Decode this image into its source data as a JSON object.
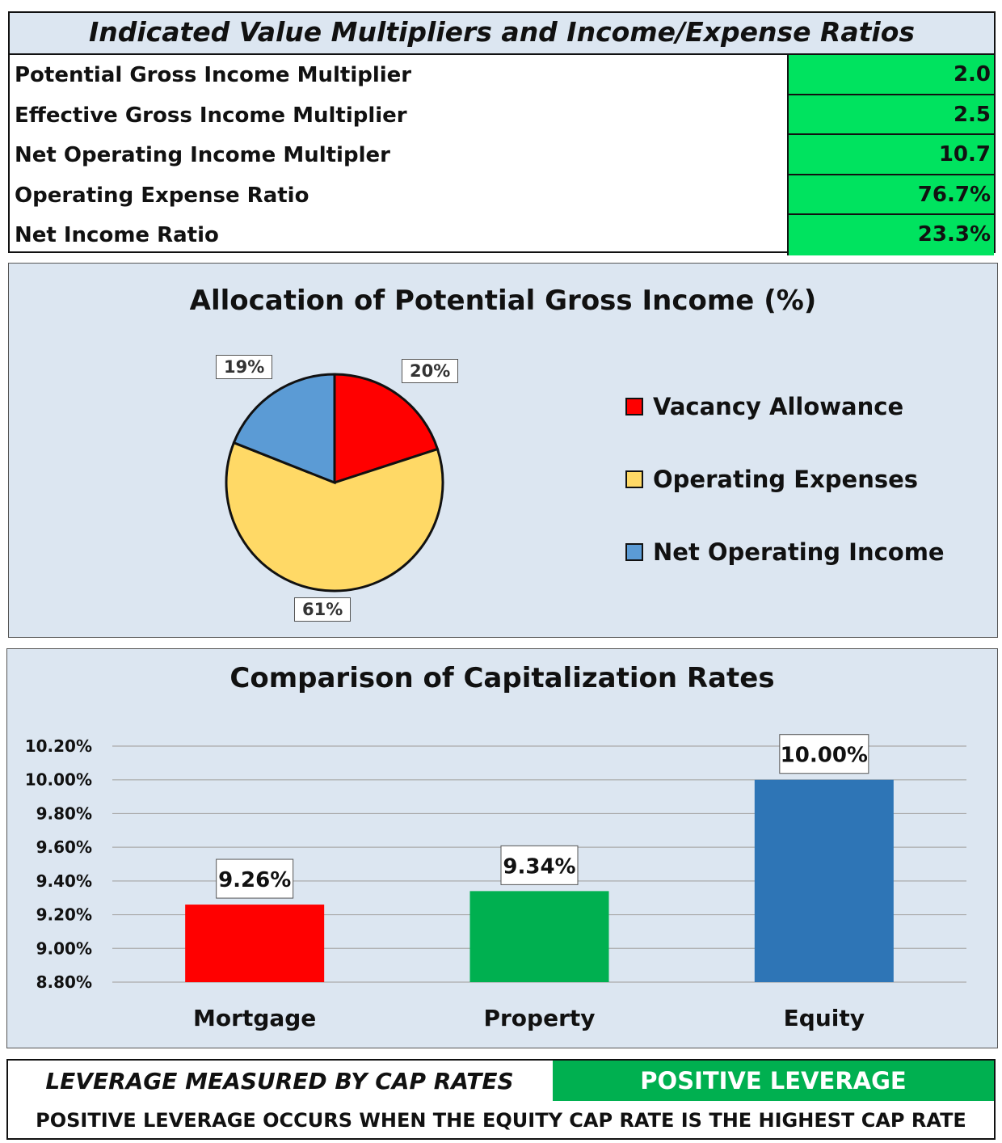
{
  "table": {
    "title": "Indicated Value Multipliers and Income/Expense Ratios",
    "rows": [
      {
        "label": "Potential Gross Income Multiplier",
        "value": "2.0"
      },
      {
        "label": "Effective Gross Income Multiplier",
        "value": "2.5"
      },
      {
        "label": "Net Operating Income Multipler",
        "value": "10.7"
      },
      {
        "label": "Operating Expense Ratio",
        "value": "76.7%"
      },
      {
        "label": "Net Income Ratio",
        "value": "23.3%"
      }
    ]
  },
  "chart_data": [
    {
      "type": "pie",
      "title": "Allocation of Potential Gross Income (%)",
      "legend_placement": "right",
      "slices": [
        {
          "name": "Vacancy Allowance",
          "value": 20,
          "label": "20%",
          "color": "#ff0000"
        },
        {
          "name": "Operating Expenses",
          "value": 61,
          "label": "61%",
          "color": "#ffd966"
        },
        {
          "name": "Net Operating Income",
          "value": 19,
          "label": "19%",
          "color": "#5b9bd5"
        }
      ]
    },
    {
      "type": "bar",
      "title": "Comparison of Capitalization Rates",
      "categories": [
        "Mortgage",
        "Property",
        "Equity"
      ],
      "values": [
        9.26,
        9.34,
        10.0
      ],
      "labels": [
        "9.26%",
        "9.34%",
        "10.00%"
      ],
      "colors": [
        "#ff0000",
        "#00b050",
        "#2e75b6"
      ],
      "ylim": [
        8.8,
        10.2
      ],
      "yticks": [
        "8.80%",
        "9.00%",
        "9.20%",
        "9.40%",
        "9.60%",
        "9.80%",
        "10.00%",
        "10.20%"
      ],
      "grid": true
    }
  ],
  "footer": {
    "label": "LEVERAGE MEASURED BY CAP RATES",
    "status": "POSITIVE LEVERAGE",
    "note": "POSITIVE LEVERAGE OCCURS WHEN THE EQUITY CAP RATE IS THE HIGHEST CAP RATE"
  }
}
